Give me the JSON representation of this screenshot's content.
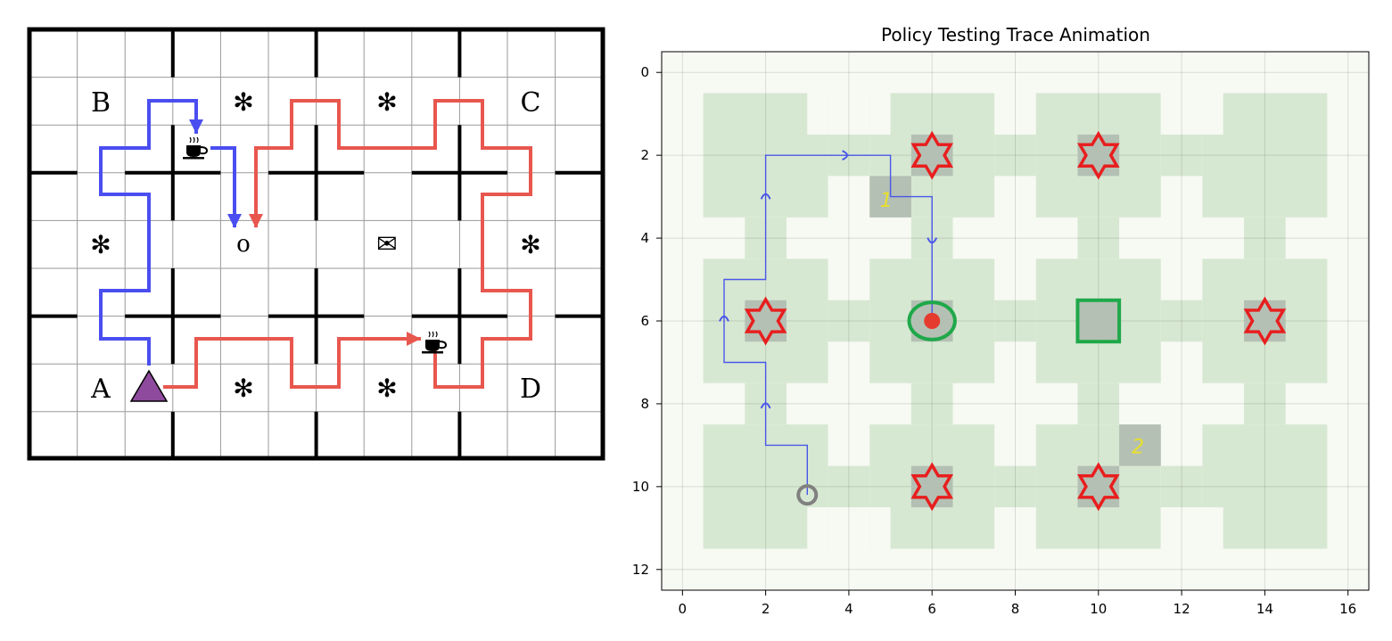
{
  "left_map": {
    "letters": {
      "A": "A",
      "B": "B",
      "C": "C",
      "D": "D"
    },
    "office_symbol": "o",
    "mail_symbol": "✉",
    "decoration_symbol": "✻",
    "coffee_icon": "coffee-icon",
    "agent_icon": "triangle-icon",
    "colors": {
      "blue_path": "#4a4ef0",
      "red_path": "#e8574e",
      "agent": "#8e4a9c",
      "wall": "#000000",
      "grid": "#9a9a9a"
    }
  },
  "right_plot": {
    "title": "Policy Testing Trace Animation",
    "x_ticks": [
      "0",
      "2",
      "4",
      "6",
      "8",
      "10",
      "12",
      "14",
      "16"
    ],
    "y_ticks": [
      "0",
      "2",
      "4",
      "6",
      "8",
      "10",
      "12"
    ],
    "xlim": [
      -0.5,
      16.5
    ],
    "ylim": [
      12.5,
      -0.5
    ],
    "grid": true,
    "room_labels": {
      "one": "1",
      "two": "2"
    },
    "colors": {
      "background": "#f7f9f3",
      "room": "#d7e8d2",
      "highlight_cell": "#b4c0b3",
      "star": "#e81e1e",
      "trace": "#4a56e8",
      "goal": "#1fa84a",
      "agent_dot": "#e53a2e",
      "start_marker": "#808080",
      "label": "#e9e02a"
    }
  }
}
